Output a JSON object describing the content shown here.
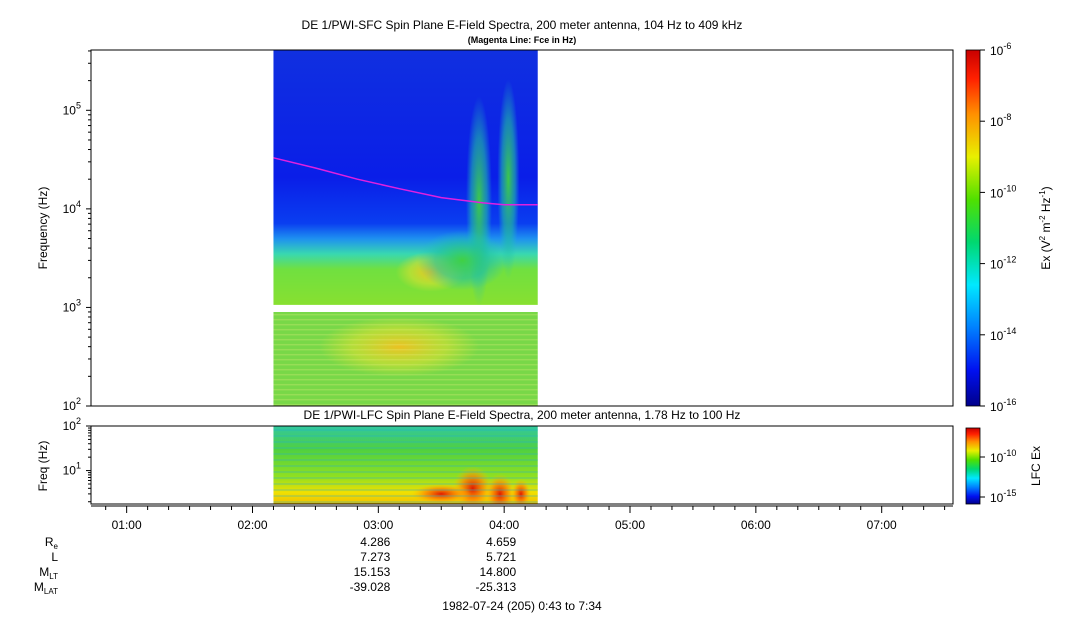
{
  "chart_data": [
    {
      "type": "heatmap",
      "title": "DE 1/PWI-SFC  Spin Plane E-Field Spectra, 200 meter antenna, 104 Hz to 409 kHz",
      "subtitle": "(Magenta Line: Fce in Hz)",
      "ylabel": "Frequency (Hz)",
      "yscale": "log",
      "ylim": [
        100,
        409000
      ],
      "yticks": [
        {
          "value": 100,
          "mant": "10",
          "exp": "2"
        },
        {
          "value": 1000,
          "mant": "10",
          "exp": "3"
        },
        {
          "value": 10000,
          "mant": "10",
          "exp": "4"
        },
        {
          "value": 100000,
          "mant": "10",
          "exp": "5"
        }
      ],
      "data_time_range": [
        "02:10",
        "04:16"
      ],
      "data_gap_hz": [
        900,
        1060
      ],
      "colorbar": {
        "scale": "log",
        "range": [
          1e-16,
          1e-06
        ],
        "label": "Ex (V² m⁻² Hz⁻¹)",
        "label_parts": {
          "a": "Ex (V",
          "b": "2",
          "c": " m",
          "d": "-2",
          "e": " Hz",
          "f": "-1",
          "g": ")"
        },
        "ticks": [
          {
            "exp": "-6"
          },
          {
            "exp": "-8"
          },
          {
            "exp": "-10"
          },
          {
            "exp": "-12"
          },
          {
            "exp": "-14"
          },
          {
            "exp": "-16"
          }
        ]
      },
      "fce_line": {
        "color": "#e020e0",
        "points": [
          [
            "02:10",
            33000
          ],
          [
            "02:30",
            26000
          ],
          [
            "02:50",
            20000
          ],
          [
            "03:10",
            16000
          ],
          [
            "03:30",
            13000
          ],
          [
            "03:50",
            11500
          ],
          [
            "04:00",
            11000
          ],
          [
            "04:16",
            11000
          ]
        ]
      }
    },
    {
      "type": "heatmap",
      "title": "DE 1/PWI-LFC  Spin Plane E-Field Spectra, 200 meter antenna, 1.78 Hz to 100 Hz",
      "ylabel": "Freq (Hz)",
      "yscale": "log",
      "ylim": [
        1.78,
        100
      ],
      "yticks": [
        {
          "value": 10,
          "mant": "10",
          "exp": "1"
        },
        {
          "value": 100,
          "mant": "10",
          "exp": "2"
        }
      ],
      "data_time_range": [
        "02:10",
        "04:16"
      ],
      "colorbar": {
        "label": "LFC Ex",
        "ticks": [
          {
            "exp": "-10"
          },
          {
            "exp": "-15"
          }
        ]
      }
    }
  ],
  "xaxis": {
    "ticks": [
      "01:00",
      "02:00",
      "03:00",
      "04:00",
      "05:00",
      "06:00",
      "07:00"
    ],
    "start": "00:43",
    "end": "07:34"
  },
  "ephemeris": {
    "rows": [
      {
        "label": "R",
        "sub": "e",
        "values": [
          "4.286",
          "4.659"
        ]
      },
      {
        "label": "L",
        "sub": "",
        "values": [
          "7.273",
          "5.721"
        ]
      },
      {
        "label": "M",
        "sub": "LT",
        "values": [
          "15.153",
          "14.800"
        ]
      },
      {
        "label": "M",
        "sub": "LAT",
        "values": [
          "-39.028",
          "-25.313"
        ]
      }
    ],
    "value_times": [
      "03:00",
      "04:00"
    ]
  },
  "footer": "1982-07-24 (205) 0:43 to 7:34"
}
